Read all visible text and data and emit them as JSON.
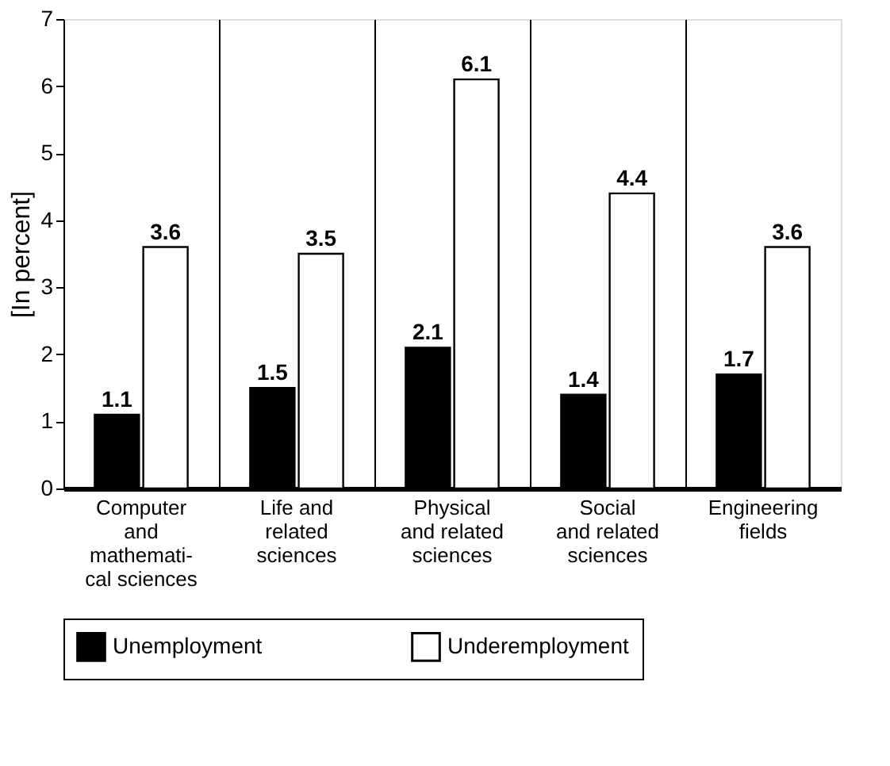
{
  "chart_data": {
    "type": "bar",
    "ylabel": "[In percent]",
    "categories": [
      "Computer\nand\nmathemati-\ncal sciences",
      "Life and\nrelated\nsciences",
      "Physical\nand related\nsciences",
      "Social\nand related\nsciences",
      "Engineering\nfields"
    ],
    "series": [
      {
        "name": "Unemployment",
        "color": "#000000",
        "values": [
          1.1,
          1.5,
          2.1,
          1.4,
          1.7
        ]
      },
      {
        "name": "Underemployment",
        "color": "#ffffff",
        "values": [
          3.6,
          3.5,
          6.1,
          4.4,
          3.6
        ]
      }
    ],
    "ylim": [
      0,
      7
    ],
    "yticks": [
      0,
      1,
      2,
      3,
      4,
      5,
      6,
      7
    ],
    "grid": "x",
    "legend": "bottom",
    "data_labels": true
  }
}
